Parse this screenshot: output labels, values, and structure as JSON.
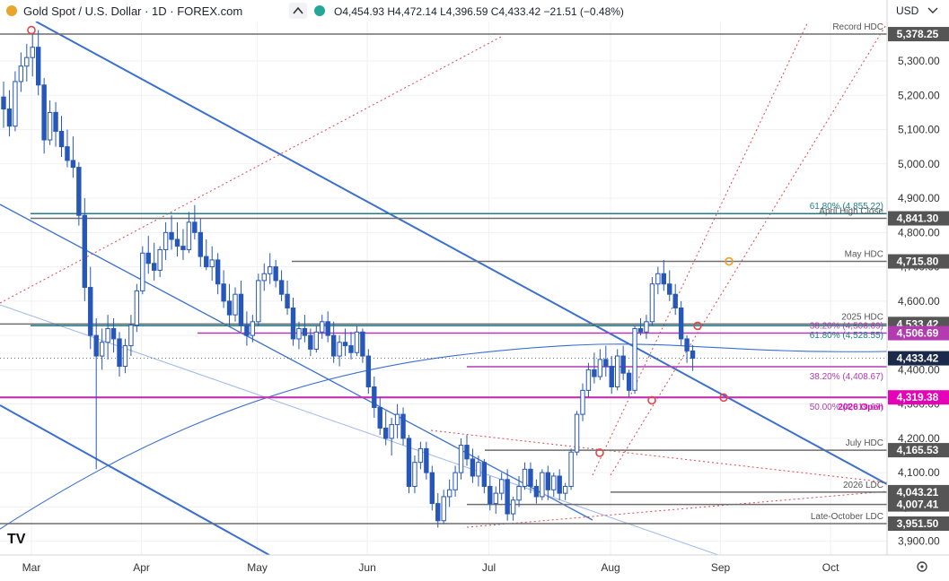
{
  "header": {
    "title": "Gold Spot / U.S. Dollar · 1D · FOREX.com",
    "ohlc": "O4,454.93 H4,472.14 L4,396.59 C4,433.42 −21.51 (−0.48%)",
    "currency": "USD",
    "logo": "TV"
  },
  "icons": {
    "collapse": "chevron-up-icon",
    "dot": "status-dot-icon",
    "currency_menu": "chevron-down-icon",
    "settings": "gear-icon"
  },
  "colors": {
    "bull": "#2757b8",
    "bear": "#2757b8",
    "channel": "#3a6fd0",
    "teal": "#1f7f8a",
    "magenta": "#e600b8",
    "purple": "#b23bb0",
    "gray": "#6e6e6e",
    "pitchfork": "#e0464a",
    "marker_orange": "#f39a1e",
    "price_tag": "#1b2a4a"
  },
  "chart_data": {
    "type": "candlestick",
    "x_ticks": [
      "Mar",
      "Apr",
      "May",
      "Jun",
      "Jul",
      "Aug",
      "Sep",
      "Oct"
    ],
    "y_ticks": [
      3900,
      4000,
      4100,
      4200,
      4300,
      4400,
      4500,
      4600,
      4700,
      4800,
      4900,
      5000,
      5100,
      5200,
      5300
    ],
    "y_tick_labels": [
      "3,900.00",
      "4,000.00",
      "4,100.00",
      "4,200.00",
      "4,300.00",
      "4,400.00",
      "4,500.00",
      "4,600.00",
      "4,700.00",
      "4,800.00",
      "4,900.00",
      "5,000.00",
      "5,100.00",
      "5,200.00",
      "5,300.00"
    ],
    "ylim": [
      3860,
      5415
    ],
    "last_price": 4433.42,
    "levels": [
      {
        "price": 5378.25,
        "label": "Record HDC",
        "tag": "5,378.25",
        "style": "gray"
      },
      {
        "price": 4855.22,
        "label": "61.80% (4,855.22)",
        "tag": "",
        "style": "teal"
      },
      {
        "price": 4841.3,
        "label": "April High Close",
        "tag": "4,841.30",
        "style": "gray"
      },
      {
        "price": 4715.8,
        "label": "May HDC",
        "tag": "4,715.80",
        "style": "gray"
      },
      {
        "price": 4533.42,
        "label": "2025 HDC",
        "tag": "4,533.42",
        "style": "gray"
      },
      {
        "price": 4506.69,
        "label": "38.20% (4,506.69)",
        "tag": "4,506.69",
        "style": "purple"
      },
      {
        "price": 4528.55,
        "label": "61.80% (4,528.55)",
        "tag": "",
        "style": "teal"
      },
      {
        "price": 4408.67,
        "label": "38.20% (4,408.67)",
        "tag": "",
        "style": "purple"
      },
      {
        "price": 4319.38,
        "label": "2026 Open",
        "tag": "4,319.38",
        "style": "magenta"
      },
      {
        "price": 4319.67,
        "label": "50.00% (4,319.67)",
        "tag": "",
        "style": "purple"
      },
      {
        "price": 4165.53,
        "label": "July HDC",
        "tag": "4,165.53",
        "style": "gray"
      },
      {
        "price": 4043.21,
        "label": "2026 LDC",
        "tag": "4,043.21",
        "style": "gray"
      },
      {
        "price": 4007.41,
        "label": "",
        "tag": "4,007.41",
        "style": "gray"
      },
      {
        "price": 3951.5,
        "label": "Late-October LDC",
        "tag": "3,951.50",
        "style": "gray"
      }
    ],
    "candles": [
      [
        5195,
        5240,
        5105,
        5160
      ],
      [
        5160,
        5215,
        5080,
        5110
      ],
      [
        5110,
        5270,
        5095,
        5240
      ],
      [
        5240,
        5325,
        5210,
        5285
      ],
      [
        5285,
        5350,
        5240,
        5310
      ],
      [
        5310,
        5378,
        5255,
        5340
      ],
      [
        5340,
        5390,
        5200,
        5230
      ],
      [
        5230,
        5250,
        5030,
        5070
      ],
      [
        5070,
        5185,
        5055,
        5150
      ],
      [
        5150,
        5180,
        5050,
        5095
      ],
      [
        5095,
        5140,
        5020,
        5050
      ],
      [
        5050,
        5100,
        4990,
        5010
      ],
      [
        5010,
        5080,
        4960,
        4990
      ],
      [
        4990,
        5005,
        4820,
        4850
      ],
      [
        4850,
        4900,
        4600,
        4640
      ],
      [
        4640,
        4700,
        4460,
        4500
      ],
      [
        4500,
        4550,
        4110,
        4440
      ],
      [
        4440,
        4520,
        4400,
        4480
      ],
      [
        4480,
        4560,
        4430,
        4520
      ],
      [
        4520,
        4550,
        4450,
        4490
      ],
      [
        4490,
        4510,
        4380,
        4410
      ],
      [
        4410,
        4490,
        4390,
        4470
      ],
      [
        4470,
        4560,
        4440,
        4530
      ],
      [
        4530,
        4650,
        4510,
        4630
      ],
      [
        4630,
        4760,
        4620,
        4740
      ],
      [
        4740,
        4790,
        4680,
        4710
      ],
      [
        4710,
        4770,
        4660,
        4690
      ],
      [
        4690,
        4760,
        4670,
        4750
      ],
      [
        4750,
        4830,
        4720,
        4800
      ],
      [
        4800,
        4850,
        4750,
        4780
      ],
      [
        4780,
        4830,
        4730,
        4760
      ],
      [
        4760,
        4810,
        4720,
        4750
      ],
      [
        4750,
        4860,
        4740,
        4830
      ],
      [
        4830,
        4880,
        4780,
        4800
      ],
      [
        4800,
        4840,
        4700,
        4730
      ],
      [
        4730,
        4780,
        4690,
        4700
      ],
      [
        4700,
        4760,
        4660,
        4720
      ],
      [
        4720,
        4740,
        4620,
        4650
      ],
      [
        4650,
        4690,
        4580,
        4600
      ],
      [
        4600,
        4650,
        4530,
        4560
      ],
      [
        4560,
        4640,
        4540,
        4620
      ],
      [
        4620,
        4660,
        4510,
        4530
      ],
      [
        4530,
        4570,
        4470,
        4500
      ],
      [
        4500,
        4560,
        4480,
        4540
      ],
      [
        4540,
        4680,
        4530,
        4660
      ],
      [
        4660,
        4710,
        4630,
        4680
      ],
      [
        4680,
        4740,
        4650,
        4700
      ],
      [
        4700,
        4720,
        4640,
        4660
      ],
      [
        4660,
        4690,
        4600,
        4620
      ],
      [
        4620,
        4660,
        4560,
        4580
      ],
      [
        4580,
        4610,
        4470,
        4490
      ],
      [
        4490,
        4540,
        4460,
        4520
      ],
      [
        4520,
        4560,
        4480,
        4500
      ],
      [
        4500,
        4520,
        4440,
        4460
      ],
      [
        4460,
        4530,
        4450,
        4510
      ],
      [
        4510,
        4560,
        4490,
        4540
      ],
      [
        4540,
        4570,
        4480,
        4500
      ],
      [
        4500,
        4540,
        4420,
        4440
      ],
      [
        4440,
        4500,
        4410,
        4480
      ],
      [
        4480,
        4520,
        4440,
        4470
      ],
      [
        4470,
        4510,
        4430,
        4450
      ],
      [
        4450,
        4530,
        4440,
        4510
      ],
      [
        4510,
        4520,
        4420,
        4440
      ],
      [
        4440,
        4460,
        4330,
        4350
      ],
      [
        4350,
        4380,
        4260,
        4290
      ],
      [
        4290,
        4320,
        4210,
        4230
      ],
      [
        4230,
        4280,
        4180,
        4200
      ],
      [
        4200,
        4260,
        4150,
        4240
      ],
      [
        4240,
        4300,
        4200,
        4270
      ],
      [
        4270,
        4290,
        4180,
        4200
      ],
      [
        4200,
        4210,
        4040,
        4060
      ],
      [
        4060,
        4150,
        4040,
        4130
      ],
      [
        4130,
        4190,
        4110,
        4170
      ],
      [
        4170,
        4190,
        4080,
        4100
      ],
      [
        4100,
        4120,
        3990,
        4010
      ],
      [
        4010,
        4040,
        3940,
        3960
      ],
      [
        3960,
        4050,
        3950,
        4030
      ],
      [
        4030,
        4080,
        4000,
        4050
      ],
      [
        4050,
        4120,
        4030,
        4100
      ],
      [
        4100,
        4200,
        4080,
        4180
      ],
      [
        4180,
        4210,
        4120,
        4140
      ],
      [
        4140,
        4170,
        4070,
        4090
      ],
      [
        4090,
        4150,
        4060,
        4130
      ],
      [
        4130,
        4140,
        4040,
        4060
      ],
      [
        4060,
        4090,
        3990,
        4010
      ],
      [
        4010,
        4060,
        3980,
        4040
      ],
      [
        4040,
        4100,
        4020,
        4080
      ],
      [
        4080,
        4110,
        3960,
        3980
      ],
      [
        3980,
        4030,
        3960,
        4020
      ],
      [
        4020,
        4090,
        4000,
        4060
      ],
      [
        4060,
        4130,
        4050,
        4110
      ],
      [
        4110,
        4130,
        4040,
        4060
      ],
      [
        4060,
        4080,
        4010,
        4030
      ],
      [
        4030,
        4110,
        4020,
        4100
      ],
      [
        4100,
        4120,
        4020,
        4050
      ],
      [
        4050,
        4100,
        4030,
        4090
      ],
      [
        4090,
        4110,
        4020,
        4040
      ],
      [
        4040,
        4070,
        4020,
        4060
      ],
      [
        4060,
        4170,
        4050,
        4160
      ],
      [
        4160,
        4280,
        4150,
        4270
      ],
      [
        4270,
        4360,
        4250,
        4340
      ],
      [
        4340,
        4420,
        4320,
        4400
      ],
      [
        4400,
        4450,
        4360,
        4380
      ],
      [
        4380,
        4460,
        4370,
        4430
      ],
      [
        4430,
        4470,
        4380,
        4410
      ],
      [
        4410,
        4440,
        4330,
        4350
      ],
      [
        4350,
        4460,
        4340,
        4440
      ],
      [
        4440,
        4470,
        4370,
        4390
      ],
      [
        4390,
        4400,
        4320,
        4340
      ],
      [
        4340,
        4530,
        4330,
        4520
      ],
      [
        4520,
        4550,
        4500,
        4510
      ],
      [
        4510,
        4560,
        4490,
        4540
      ],
      [
        4540,
        4670,
        4530,
        4650
      ],
      [
        4650,
        4700,
        4620,
        4680
      ],
      [
        4680,
        4720,
        4630,
        4650
      ],
      [
        4650,
        4690,
        4600,
        4620
      ],
      [
        4620,
        4650,
        4560,
        4580
      ],
      [
        4580,
        4600,
        4470,
        4490
      ],
      [
        4490,
        4500,
        4420,
        4454.93
      ],
      [
        4454.93,
        4472.14,
        4396.59,
        4433.42
      ]
    ]
  }
}
